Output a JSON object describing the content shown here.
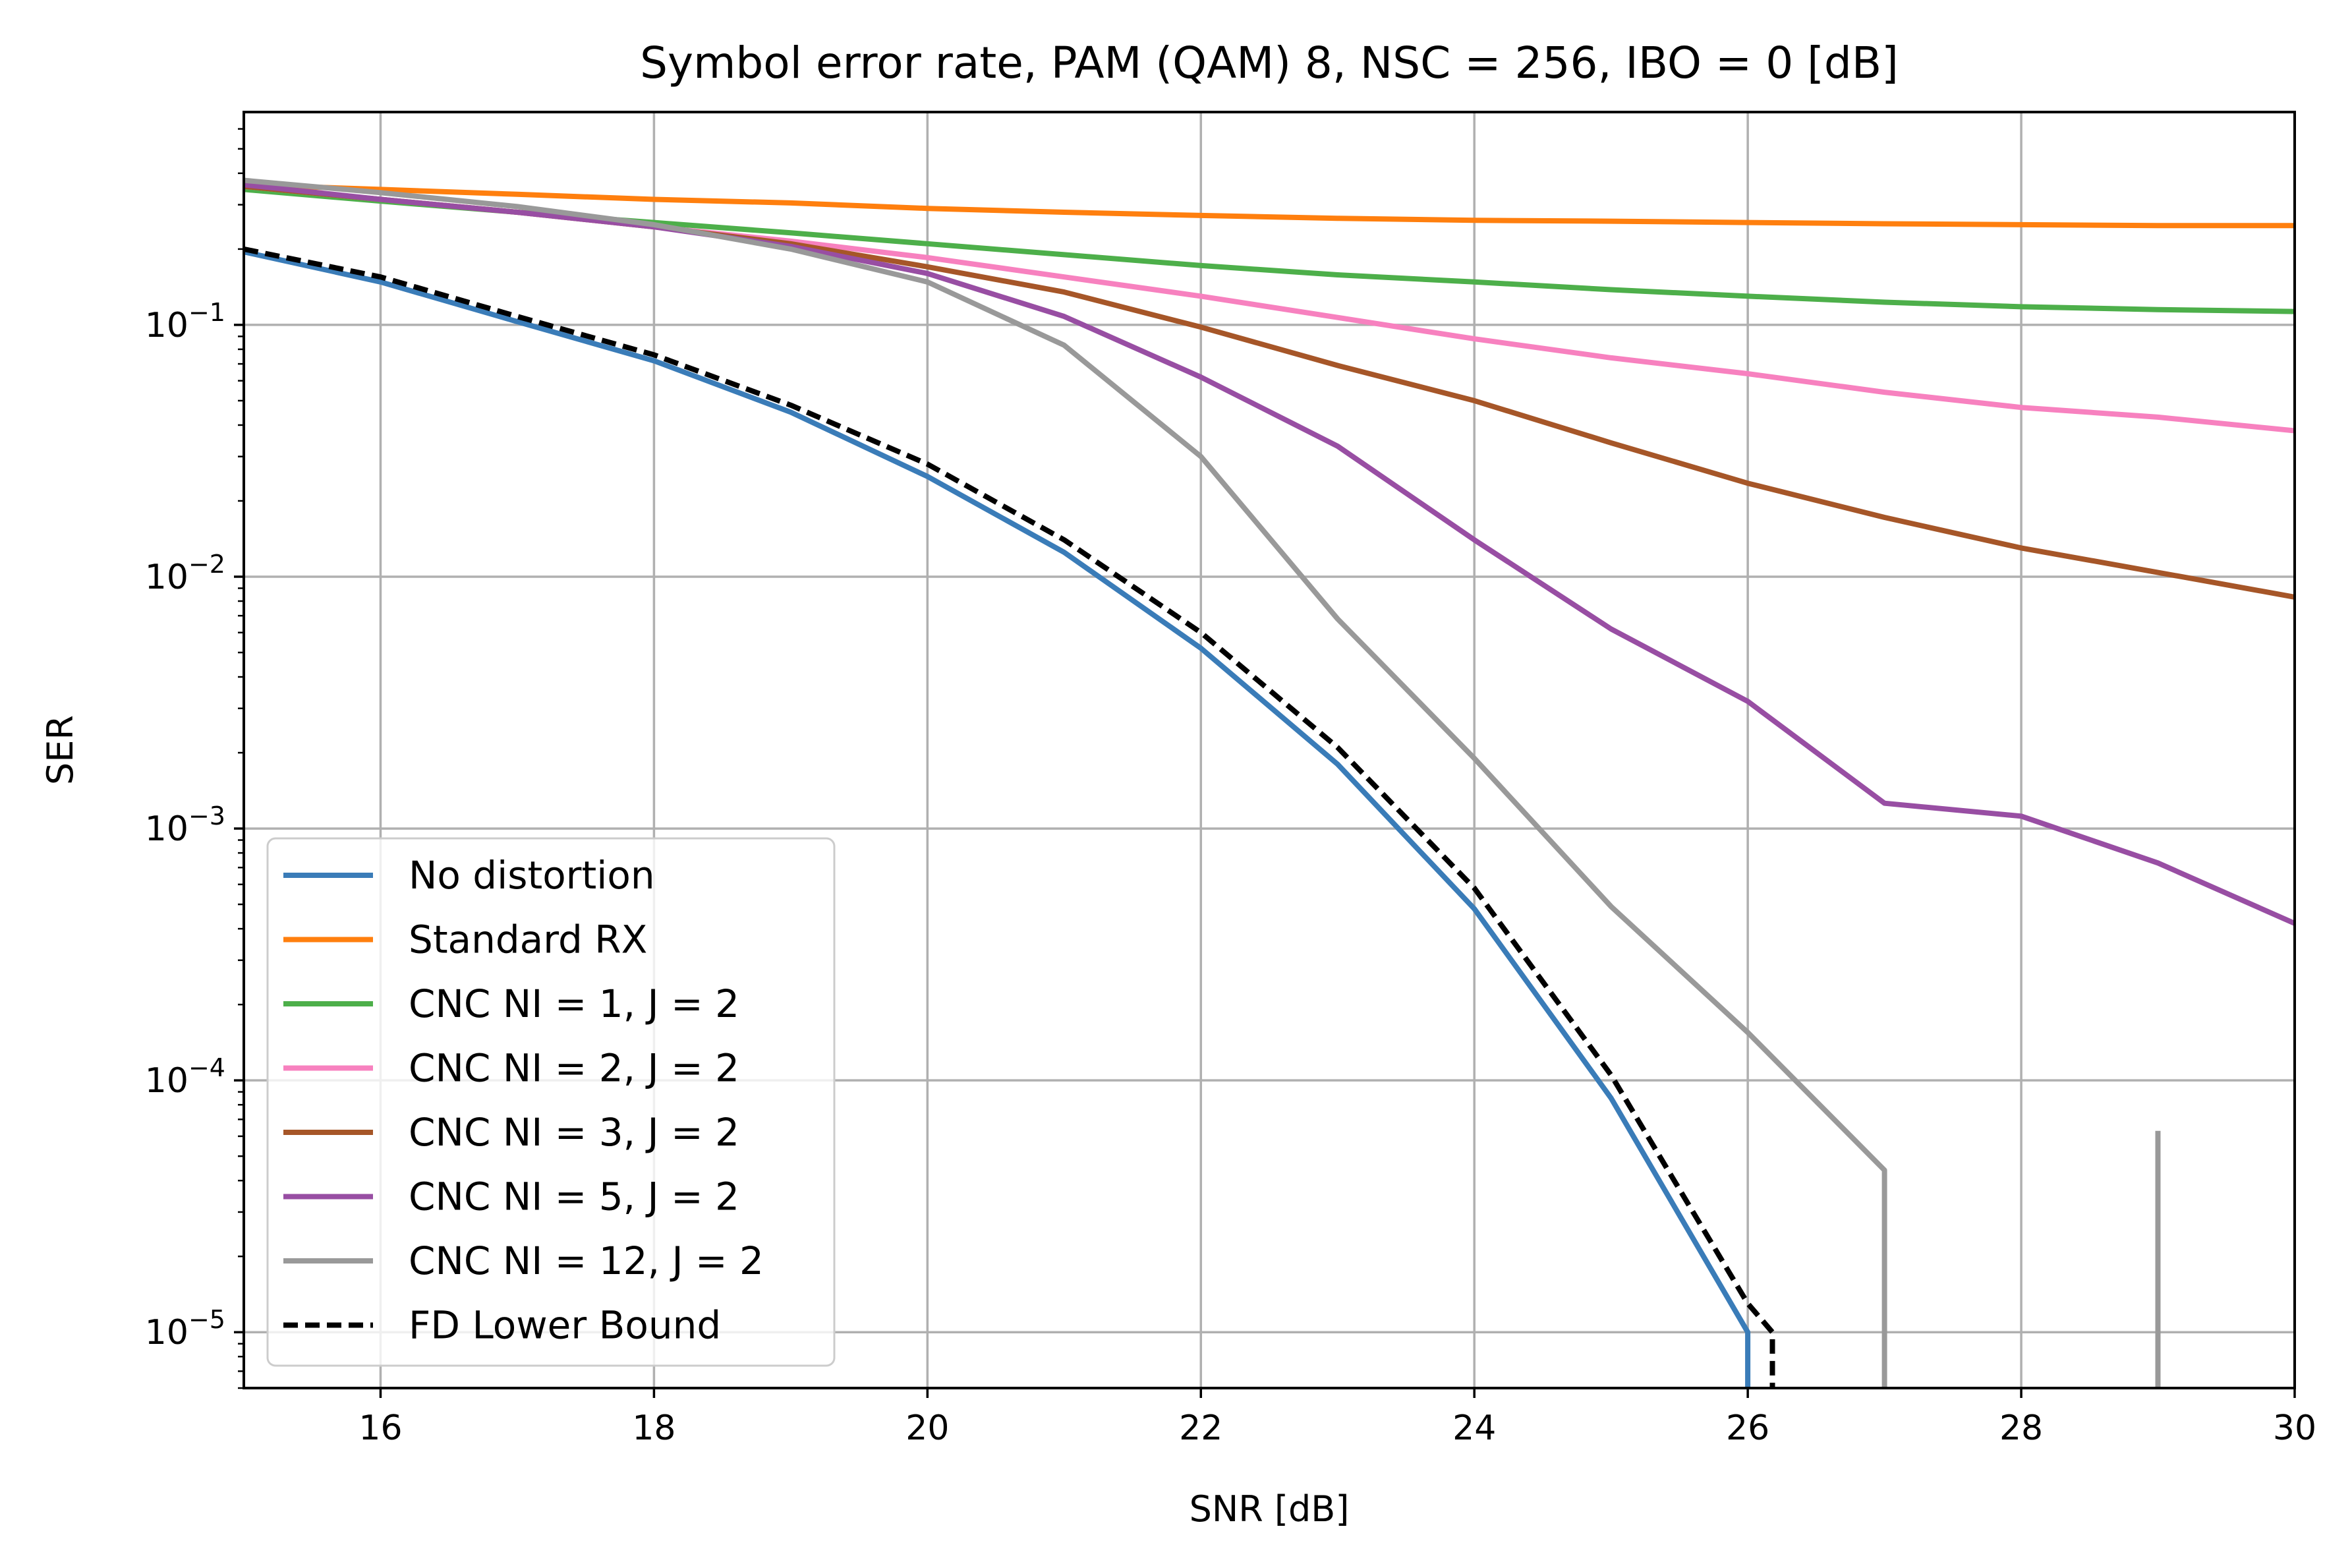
{
  "chart_data": {
    "type": "line",
    "title": "Symbol error rate, PAM (QAM) 8, NSC = 256, IBO = 0 [dB]",
    "xlabel": "SNR [dB]",
    "ylabel": "SER",
    "xlim": [
      15,
      30
    ],
    "ylim": [
      6e-06,
      0.7
    ],
    "yscale": "log",
    "grid": true,
    "legend_position": "lower-left",
    "xticks": [
      {
        "value": 16,
        "label": "16"
      },
      {
        "value": 18,
        "label": "18"
      },
      {
        "value": 20,
        "label": "20"
      },
      {
        "value": 22,
        "label": "22"
      },
      {
        "value": 24,
        "label": "24"
      },
      {
        "value": 26,
        "label": "26"
      },
      {
        "value": 28,
        "label": "28"
      },
      {
        "value": 30,
        "label": "30"
      }
    ],
    "yticks": [
      {
        "value": 1e-05,
        "base": "10",
        "exp": "−5"
      },
      {
        "value": 0.0001,
        "base": "10",
        "exp": "−4"
      },
      {
        "value": 0.001,
        "base": "10",
        "exp": "−3"
      },
      {
        "value": 0.01,
        "base": "10",
        "exp": "−2"
      },
      {
        "value": 0.1,
        "base": "10",
        "exp": "−1"
      }
    ],
    "series": [
      {
        "name": "No distortion",
        "color": "#3a7cb8",
        "dash": "solid",
        "points": [
          [
            15,
            0.195
          ],
          [
            16,
            0.148
          ],
          [
            17,
            0.103
          ],
          [
            18,
            0.072
          ],
          [
            19,
            0.045
          ],
          [
            20,
            0.025
          ],
          [
            21,
            0.0125
          ],
          [
            22,
            0.0052
          ],
          [
            23,
            0.0018
          ],
          [
            24,
            0.00048
          ],
          [
            25,
            8.5e-05
          ],
          [
            26,
            1e-05
          ],
          [
            26,
            6e-06
          ]
        ]
      },
      {
        "name": "Standard RX",
        "color": "#ff7f0e",
        "dash": "solid",
        "points": [
          [
            15,
            0.36
          ],
          [
            16,
            0.345
          ],
          [
            17,
            0.33
          ],
          [
            18,
            0.315
          ],
          [
            19,
            0.305
          ],
          [
            20,
            0.29
          ],
          [
            21,
            0.28
          ],
          [
            22,
            0.272
          ],
          [
            23,
            0.265
          ],
          [
            24,
            0.26
          ],
          [
            25,
            0.258
          ],
          [
            26,
            0.255
          ],
          [
            27,
            0.252
          ],
          [
            28,
            0.25
          ],
          [
            29,
            0.248
          ],
          [
            30,
            0.248
          ]
        ]
      },
      {
        "name": "CNC NI = 1, J = 2",
        "color": "#4daf4a",
        "dash": "solid",
        "points": [
          [
            15,
            0.345
          ],
          [
            16,
            0.31
          ],
          [
            17,
            0.28
          ],
          [
            18,
            0.255
          ],
          [
            19,
            0.232
          ],
          [
            20,
            0.21
          ],
          [
            21,
            0.19
          ],
          [
            22,
            0.172
          ],
          [
            23,
            0.158
          ],
          [
            24,
            0.148
          ],
          [
            25,
            0.138
          ],
          [
            26,
            0.13
          ],
          [
            27,
            0.123
          ],
          [
            28,
            0.118
          ],
          [
            29,
            0.115
          ],
          [
            30,
            0.113
          ]
        ]
      },
      {
        "name": "CNC NI = 2, J = 2",
        "color": "#f781bf",
        "dash": "solid",
        "points": [
          [
            15,
            0.355
          ],
          [
            16,
            0.315
          ],
          [
            17,
            0.28
          ],
          [
            18,
            0.245
          ],
          [
            19,
            0.215
          ],
          [
            20,
            0.185
          ],
          [
            21,
            0.155
          ],
          [
            22,
            0.13
          ],
          [
            23,
            0.107
          ],
          [
            24,
            0.088
          ],
          [
            25,
            0.074
          ],
          [
            26,
            0.064
          ],
          [
            27,
            0.054
          ],
          [
            28,
            0.047
          ],
          [
            29,
            0.043
          ],
          [
            30,
            0.038
          ]
        ]
      },
      {
        "name": "CNC NI = 3, J = 2",
        "color": "#a65628",
        "dash": "solid",
        "points": [
          [
            15,
            0.355
          ],
          [
            16,
            0.315
          ],
          [
            17,
            0.28
          ],
          [
            18,
            0.245
          ],
          [
            19,
            0.21
          ],
          [
            20,
            0.17
          ],
          [
            21,
            0.135
          ],
          [
            22,
            0.098
          ],
          [
            23,
            0.069
          ],
          [
            24,
            0.05
          ],
          [
            25,
            0.034
          ],
          [
            26,
            0.0235
          ],
          [
            27,
            0.0172
          ],
          [
            28,
            0.013
          ],
          [
            29,
            0.0104
          ],
          [
            30,
            0.0083
          ]
        ]
      },
      {
        "name": "CNC NI = 5, J = 2",
        "color": "#984ea3",
        "dash": "solid",
        "points": [
          [
            15,
            0.36
          ],
          [
            16,
            0.315
          ],
          [
            17,
            0.28
          ],
          [
            18,
            0.245
          ],
          [
            19,
            0.205
          ],
          [
            20,
            0.16
          ],
          [
            21,
            0.108
          ],
          [
            22,
            0.062
          ],
          [
            23,
            0.033
          ],
          [
            24,
            0.014
          ],
          [
            25,
            0.0062
          ],
          [
            26,
            0.0032
          ],
          [
            27,
            0.00126
          ],
          [
            28,
            0.00112
          ],
          [
            29,
            0.00073
          ],
          [
            30,
            0.00042
          ]
        ]
      },
      {
        "name": "CNC NI = 12, J = 2",
        "color": "#999999",
        "dash": "solid",
        "points": [
          [
            15,
            0.375
          ],
          [
            16,
            0.335
          ],
          [
            17,
            0.295
          ],
          [
            18,
            0.25
          ],
          [
            19,
            0.2
          ],
          [
            20,
            0.148
          ],
          [
            21,
            0.083
          ],
          [
            22,
            0.03
          ],
          [
            23,
            0.0068
          ],
          [
            24,
            0.0019
          ],
          [
            25,
            0.00049
          ],
          [
            26,
            0.000155
          ],
          [
            27,
            4.4e-05
          ],
          [
            27,
            6e-06
          ]
        ],
        "extra_segments": [
          [
            [
              29,
              6.3e-05
            ],
            [
              29,
              6e-06
            ]
          ]
        ]
      },
      {
        "name": "FD Lower Bound",
        "color": "#000000",
        "dash": "dashed",
        "points": [
          [
            15,
            0.2
          ],
          [
            16,
            0.155
          ],
          [
            17,
            0.108
          ],
          [
            18,
            0.076
          ],
          [
            19,
            0.048
          ],
          [
            20,
            0.028
          ],
          [
            21,
            0.014
          ],
          [
            22,
            0.006
          ],
          [
            23,
            0.0021
          ],
          [
            24,
            0.00058
          ],
          [
            25,
            0.000105
          ],
          [
            26,
            1.3e-05
          ],
          [
            26.18,
            1e-05
          ],
          [
            26.18,
            6e-06
          ]
        ]
      }
    ]
  }
}
